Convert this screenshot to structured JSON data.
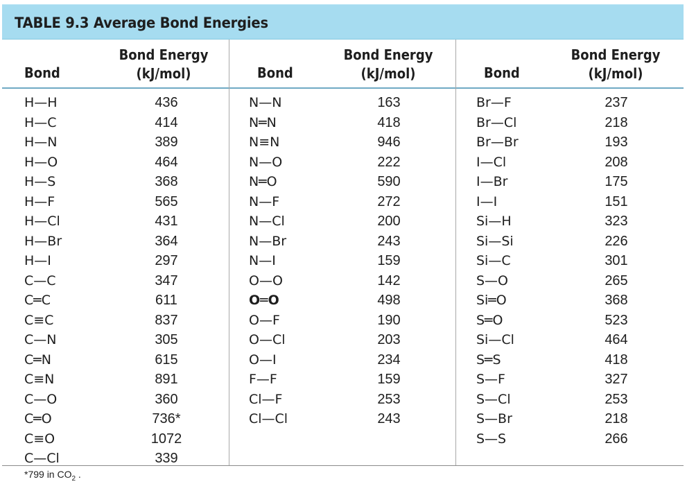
{
  "title": "TABLE 9.3  Average Bond Energies",
  "headers": {
    "bond": "Bond",
    "energy_line1": "Bond Energy",
    "energy_line2": "(kJ/mol)"
  },
  "columns": [
    {
      "rows": [
        {
          "bond": "H—H",
          "energy": "436"
        },
        {
          "bond": "H—C",
          "energy": "414"
        },
        {
          "bond": "H—N",
          "energy": "389"
        },
        {
          "bond": "H—O",
          "energy": "464"
        },
        {
          "bond": "H—S",
          "energy": "368"
        },
        {
          "bond": "H—F",
          "energy": "565"
        },
        {
          "bond": "H—Cl",
          "energy": "431"
        },
        {
          "bond": "H—Br",
          "energy": "364"
        },
        {
          "bond": "H—I",
          "energy": "297"
        },
        {
          "bond": "C—C",
          "energy": "347"
        },
        {
          "bond": "C═C",
          "energy": "611"
        },
        {
          "bond": "C≡C",
          "energy": "837"
        },
        {
          "bond": "C—N",
          "energy": "305"
        },
        {
          "bond": "C═N",
          "energy": "615"
        },
        {
          "bond": "C≡N",
          "energy": "891"
        },
        {
          "bond": "C—O",
          "energy": "360"
        },
        {
          "bond": "C═O",
          "energy": "736*"
        },
        {
          "bond": "C≡O",
          "energy": "1072"
        },
        {
          "bond": "C—Cl",
          "energy": "339"
        }
      ]
    },
    {
      "rows": [
        {
          "bond": "N—N",
          "energy": "163"
        },
        {
          "bond": "N═N",
          "energy": "418"
        },
        {
          "bond": "N≡N",
          "energy": "946"
        },
        {
          "bond": "N—O",
          "energy": "222"
        },
        {
          "bond": "N═O",
          "energy": "590"
        },
        {
          "bond": "N—F",
          "energy": "272"
        },
        {
          "bond": "N—Cl",
          "energy": "200"
        },
        {
          "bond": "N—Br",
          "energy": "243"
        },
        {
          "bond": "N—I",
          "energy": "159"
        },
        {
          "bond": "O—O",
          "energy": "142"
        },
        {
          "bond": "O═O",
          "energy": "498",
          "bold": true
        },
        {
          "bond": "O—F",
          "energy": "190"
        },
        {
          "bond": "O—Cl",
          "energy": "203"
        },
        {
          "bond": "O—I",
          "energy": "234"
        },
        {
          "bond": "F—F",
          "energy": "159"
        },
        {
          "bond": "Cl—F",
          "energy": "253"
        },
        {
          "bond": "Cl—Cl",
          "energy": "243"
        }
      ]
    },
    {
      "rows": [
        {
          "bond": "Br—F",
          "energy": "237"
        },
        {
          "bond": "Br—Cl",
          "energy": "218"
        },
        {
          "bond": "Br—Br",
          "energy": "193"
        },
        {
          "bond": "I—Cl",
          "energy": "208"
        },
        {
          "bond": "I—Br",
          "energy": "175"
        },
        {
          "bond": "I—I",
          "energy": "151"
        },
        {
          "bond": "Si—H",
          "energy": "323"
        },
        {
          "bond": "Si—Si",
          "energy": "226"
        },
        {
          "bond": "Si—C",
          "energy": "301"
        },
        {
          "bond": "S—O",
          "energy": "265"
        },
        {
          "bond": "Si═O",
          "energy": "368"
        },
        {
          "bond": "S═O",
          "energy": "523"
        },
        {
          "bond": "Si—Cl",
          "energy": "464"
        },
        {
          "bond": "S═S",
          "energy": "418"
        },
        {
          "bond": "S—F",
          "energy": "327"
        },
        {
          "bond": "S—Cl",
          "energy": "253"
        },
        {
          "bond": "S—Br",
          "energy": "218"
        },
        {
          "bond": "S—S",
          "energy": "266"
        }
      ]
    }
  ],
  "footnote": {
    "prefix": "*799 in CO",
    "sub": "2",
    "suffix": " ."
  },
  "colors": {
    "header_bg": "#a6dcf0",
    "text": "#1e1e1e",
    "rule": "#a9a9a9"
  }
}
